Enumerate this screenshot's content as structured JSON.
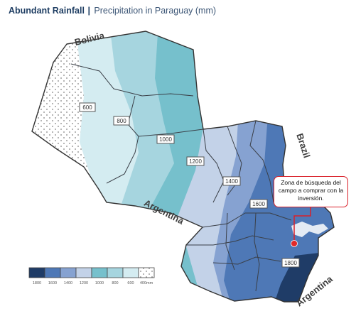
{
  "header": {
    "title": "Abundant Rainfall",
    "separator": "|",
    "subtitle": "Precipitation in Paraguay (mm)"
  },
  "countries": {
    "bolivia": "Bolivia",
    "brazil": "Brazil",
    "argentina_south": "Argentina",
    "argentina_southeast": "Argentina"
  },
  "isohyets": [
    "600",
    "800",
    "1000",
    "1200",
    "1400",
    "1600",
    "1800"
  ],
  "callout": {
    "text": "Zona de búsqueda del campo a comprar con la inversión."
  },
  "legend": {
    "labels": [
      "1800",
      "1600",
      "1400",
      "1200",
      "1000",
      "800",
      "600",
      "400mm"
    ],
    "colors": [
      "#1f3c67",
      "#4e78b6",
      "#86a2d1",
      "#c3d2e8",
      "#76c0cc",
      "#a6d5df",
      "#d4ecf1",
      "#ffffff"
    ]
  },
  "colors": {
    "accent": "#d9202a",
    "title": "#1f3e63"
  }
}
